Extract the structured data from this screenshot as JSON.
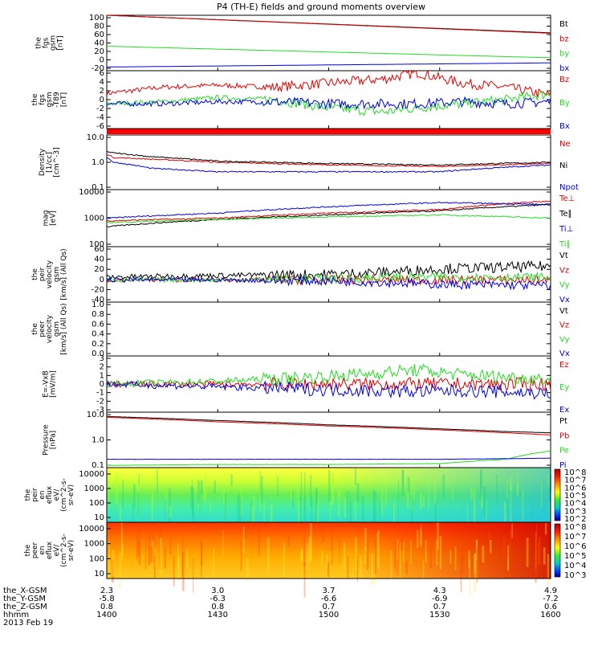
{
  "title": "P4 (TH-E) fields and ground moments overview",
  "date": "2013 Feb 19",
  "colors": {
    "black": "#000000",
    "red": "#e00000",
    "green": "#22dd22",
    "blue": "#0000dd"
  },
  "footer": {
    "labels": [
      "the_X-GSM",
      "the_Y-GSM",
      "the_Z-GSM",
      "hhmm"
    ],
    "columns": [
      {
        "x": "2.3",
        "y": "-5.8",
        "z": "0.8",
        "t": "1400"
      },
      {
        "x": "3.0",
        "y": "-6.3",
        "z": "0.8",
        "t": "1430"
      },
      {
        "x": "3.7",
        "y": "-6.6",
        "z": "0.7",
        "t": "1500"
      },
      {
        "x": "4.3",
        "y": "-6.9",
        "z": "0.7",
        "t": "1530"
      },
      {
        "x": "4.9",
        "y": "-7.2",
        "z": "0.6",
        "t": "1600"
      }
    ]
  },
  "chart_data": [
    {
      "id": "fgs_gsm",
      "type": "line",
      "ylabel": [
        "the",
        "fgs",
        "gsm",
        "[nT]"
      ],
      "ylim": [
        -20,
        100
      ],
      "yticks": [
        "100",
        "80",
        "60",
        "40",
        "20",
        "0",
        "-20"
      ],
      "x": [
        1400,
        1600
      ],
      "series": [
        {
          "name": "Bt",
          "color": "black",
          "values": [
            100,
            62
          ]
        },
        {
          "name": "bz",
          "color": "red",
          "values": [
            100,
            61
          ]
        },
        {
          "name": "by",
          "color": "green",
          "values": [
            33,
            8
          ]
        },
        {
          "name": "bx",
          "color": "blue",
          "values": [
            -12,
            -3
          ]
        }
      ]
    },
    {
      "id": "fgs_dsl_b89",
      "type": "line",
      "ylabel": [
        "the",
        "fgs",
        "gsm",
        "-T89",
        "[nT]"
      ],
      "ylim": [
        -7,
        7
      ],
      "yticks": [
        "6",
        "4",
        "2",
        "0",
        "-2",
        "-4",
        "-6"
      ],
      "x": [
        1400,
        1425,
        1450,
        1475,
        1500,
        1525,
        1540,
        1560,
        1580,
        1600
      ],
      "series": [
        {
          "name": "Bz",
          "color": "red",
          "values": [
            1.5,
            3,
            3.5,
            3,
            4,
            5,
            6.5,
            4,
            3,
            1
          ]
        },
        {
          "name": "By",
          "color": "green",
          "values": [
            -1,
            -0.5,
            0.5,
            0,
            -2,
            -3,
            -2,
            -1,
            0,
            1.5
          ]
        },
        {
          "name": "Bx",
          "color": "blue",
          "values": [
            -1,
            -1,
            -0.5,
            -0.5,
            -1,
            -1,
            -1,
            -0.5,
            -1,
            -0.5
          ]
        }
      ]
    },
    {
      "id": "density",
      "type": "line",
      "scale": "log",
      "ylabel": [
        "Density",
        "[1/cc]",
        "[cm^-3]"
      ],
      "ylim": [
        0.1,
        10
      ],
      "yticks": [
        "10.0",
        "1.0",
        "0.1"
      ],
      "x": [
        1400,
        1403,
        1420,
        1450,
        1500,
        1550,
        1600
      ],
      "series": [
        {
          "name": "Ne",
          "color": "red",
          "values": [
            2,
            1.5,
            1.3,
            1,
            0.8,
            0.7,
            0.9
          ]
        },
        {
          "name": "Ni",
          "color": "black",
          "values": [
            2.5,
            2.2,
            1.6,
            1.1,
            0.9,
            0.8,
            1
          ]
        },
        {
          "name": "Npot",
          "color": "blue",
          "values": [
            1.5,
            1,
            0.6,
            0.45,
            0.45,
            0.45,
            0.8
          ]
        }
      ]
    },
    {
      "id": "temperature",
      "type": "line",
      "scale": "log",
      "ylabel": [
        "mag",
        "[eV]"
      ],
      "ylim": [
        100,
        10000
      ],
      "yticks": [
        "10000",
        "1000",
        "100"
      ],
      "x": [
        1400,
        1450,
        1500,
        1550,
        1600
      ],
      "series": [
        {
          "name": "Te⊥",
          "color": "red",
          "values": [
            800,
            1000,
            1500,
            2000,
            4000
          ]
        },
        {
          "name": "Te∥",
          "color": "black",
          "values": [
            500,
            900,
            1300,
            1800,
            3000
          ]
        },
        {
          "name": "Ti⊥",
          "color": "blue",
          "values": [
            1000,
            1500,
            2500,
            3500,
            3000
          ]
        },
        {
          "name": "Ti∥",
          "color": "green",
          "values": [
            700,
            900,
            1100,
            1300,
            1000
          ]
        }
      ]
    },
    {
      "id": "peir_velocity",
      "type": "line",
      "ylabel": [
        "the",
        "peir",
        "velocity",
        "gsm",
        "[km/s] (All Qs)"
      ],
      "ylim": [
        -40,
        60
      ],
      "yticks": [
        "60",
        "40",
        "20",
        "0",
        "-20",
        "-40"
      ],
      "x": [
        1400,
        1450,
        1500,
        1530,
        1550,
        1600
      ],
      "series": [
        {
          "name": "Vt",
          "color": "black",
          "values": [
            5,
            8,
            10,
            15,
            20,
            25
          ]
        },
        {
          "name": "Vz",
          "color": "red",
          "values": [
            0,
            0,
            0,
            0,
            0,
            0
          ]
        },
        {
          "name": "Vy",
          "color": "green",
          "values": [
            0,
            0,
            2,
            5,
            5,
            5
          ]
        },
        {
          "name": "Vx",
          "color": "blue",
          "values": [
            0,
            0,
            -2,
            -5,
            -8,
            -10
          ]
        }
      ]
    },
    {
      "id": "peer_velocity",
      "type": "line",
      "ylabel": [
        "the",
        "peer",
        "velocity",
        "gsm",
        "[km/s] (All Qs)"
      ],
      "ylim": [
        0,
        1
      ],
      "yticks": [
        "1.0",
        "0.8",
        "0.6",
        "0.4",
        "0.2",
        "0.0"
      ],
      "x": [],
      "series": [
        {
          "name": "Vt",
          "color": "black",
          "values": []
        },
        {
          "name": "Vz",
          "color": "red",
          "values": []
        },
        {
          "name": "Vy",
          "color": "green",
          "values": []
        },
        {
          "name": "Vx",
          "color": "blue",
          "values": []
        }
      ]
    },
    {
      "id": "efield",
      "type": "line",
      "ylabel": [
        "E=-VxB",
        "[mV/m]"
      ],
      "ylim": [
        -3,
        3
      ],
      "yticks": [
        "3",
        "2",
        "1",
        "0",
        "-1",
        "-2",
        "-3"
      ],
      "x": [
        1400,
        1450,
        1500,
        1540,
        1560,
        1600
      ],
      "series": [
        {
          "name": "Ez",
          "color": "red",
          "values": [
            0,
            0,
            0,
            0,
            0,
            0
          ]
        },
        {
          "name": "Ey",
          "color": "green",
          "values": [
            0,
            0.3,
            0.8,
            1.5,
            1,
            0.5
          ]
        },
        {
          "name": "Ex",
          "color": "blue",
          "values": [
            0,
            -0.3,
            -0.6,
            -0.8,
            -0.7,
            -1
          ]
        }
      ]
    },
    {
      "id": "pressure",
      "type": "line",
      "scale": "log",
      "ylabel": [
        "Pressure",
        "[nPa]"
      ],
      "ylim": [
        0.1,
        10
      ],
      "yticks": [
        "10.0",
        "1.0",
        "0.1"
      ],
      "x": [
        1400,
        1450,
        1500,
        1550,
        1580,
        1600
      ],
      "series": [
        {
          "name": "Pt",
          "color": "black",
          "values": [
            7,
            5,
            3.5,
            2.5,
            2,
            1.8
          ]
        },
        {
          "name": "Pb",
          "color": "red",
          "values": [
            6.5,
            4.5,
            3.2,
            2.3,
            1.8,
            1.5
          ]
        },
        {
          "name": "Pe",
          "color": "green",
          "values": [
            0.12,
            0.13,
            0.13,
            0.14,
            0.2,
            0.4
          ]
        },
        {
          "name": "Pi",
          "color": "blue",
          "values": [
            0.2,
            0.2,
            0.2,
            0.2,
            0.21,
            0.22
          ]
        }
      ]
    },
    {
      "id": "peir_spectrogram",
      "type": "heatmap",
      "scale": "log",
      "ylabel": [
        "the",
        "peir",
        "en",
        "eflux",
        "eV/",
        "(cm^2-s-",
        "sr-eV)"
      ],
      "yticks": [
        "10000",
        "1000",
        "100",
        "10"
      ],
      "colorbar": [
        "10^8",
        "10^7",
        "10^6",
        "10^5",
        "10^4",
        "10^3",
        "10^2"
      ]
    },
    {
      "id": "peer_spectrogram",
      "type": "heatmap",
      "scale": "log",
      "ylabel": [
        "the",
        "peer",
        "en",
        "eflux",
        "eV/",
        "(cm^2-s-",
        "sr-eV)"
      ],
      "yticks": [
        "10000",
        "1000",
        "100",
        "10"
      ],
      "colorbar": [
        "10^8",
        "10^7",
        "10^6",
        "10^5",
        "10^4",
        "10^3"
      ]
    }
  ]
}
